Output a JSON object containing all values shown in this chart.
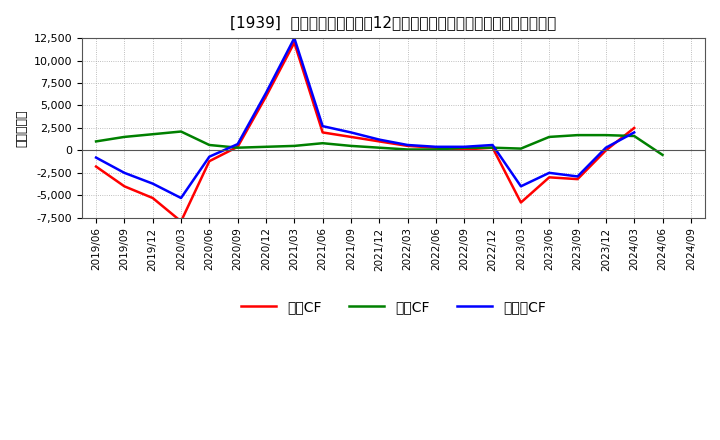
{
  "title": "[1939]  キャッシュフローの12か月移動合計の対前年同期増減額の推移",
  "ylabel": "（百万円）",
  "background_color": "#ffffff",
  "plot_bg_color": "#ffffff",
  "grid_color": "#aaaaaa",
  "ylim": [
    -7500,
    12500
  ],
  "yticks": [
    -7500,
    -5000,
    -2500,
    0,
    2500,
    5000,
    7500,
    10000,
    12500
  ],
  "dates": [
    "2019/06",
    "2019/09",
    "2019/12",
    "2020/03",
    "2020/06",
    "2020/09",
    "2020/12",
    "2021/03",
    "2021/06",
    "2021/09",
    "2021/12",
    "2022/03",
    "2022/06",
    "2022/09",
    "2022/12",
    "2023/03",
    "2023/06",
    "2023/09",
    "2023/12",
    "2024/03",
    "2024/06",
    "2024/09"
  ],
  "eigyo_cf": [
    -1800,
    -4000,
    -5300,
    -7900,
    -1200,
    400,
    6000,
    12000,
    2000,
    1500,
    1000,
    500,
    300,
    100,
    300,
    -5800,
    -3000,
    -3200,
    0,
    2500,
    null,
    null
  ],
  "toshi_cf": [
    1000,
    1500,
    1800,
    2100,
    600,
    300,
    400,
    500,
    800,
    500,
    300,
    100,
    100,
    300,
    300,
    200,
    1500,
    1700,
    1700,
    1600,
    -500,
    null
  ],
  "free_cf": [
    -800,
    -2500,
    -3700,
    -5300,
    -700,
    700,
    6400,
    12500,
    2700,
    2000,
    1200,
    600,
    400,
    400,
    600,
    -4000,
    -2500,
    -2900,
    300,
    2000,
    null,
    null
  ],
  "eigyo_color": "#ff0000",
  "toshi_color": "#008000",
  "free_color": "#0000ff",
  "line_width": 1.8,
  "legend_labels": [
    "営業CF",
    "投資CF",
    "フリーCF"
  ]
}
